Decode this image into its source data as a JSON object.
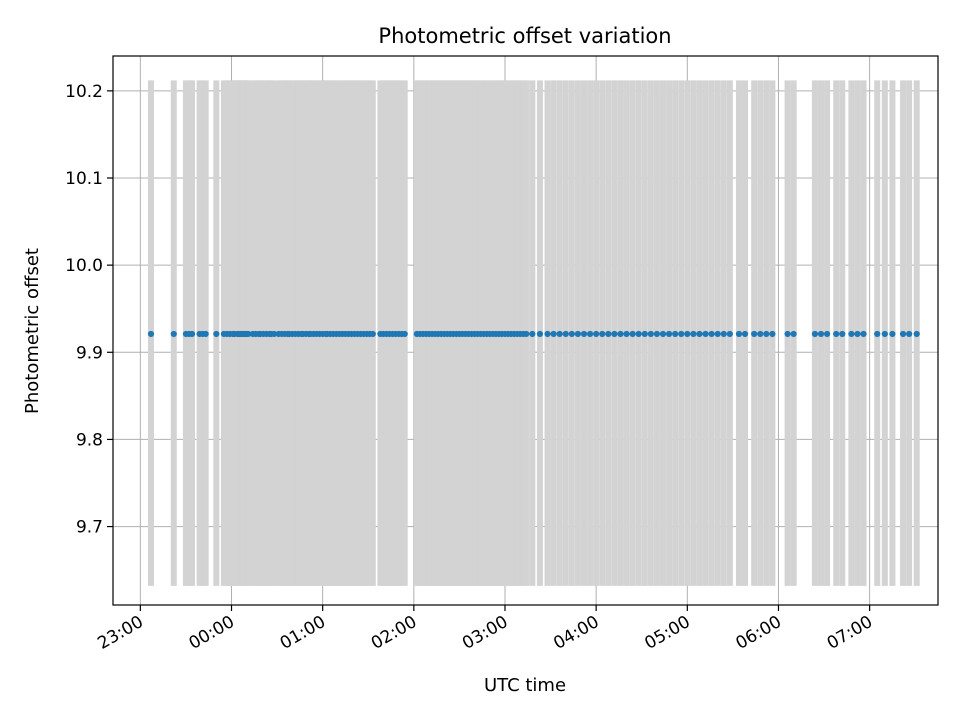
{
  "chart_data": {
    "type": "scatter",
    "title": "Photometric offset variation",
    "xlabel": "UTC time",
    "ylabel": "Photometric offset",
    "x_axis": {
      "kind": "time",
      "min": "22:42",
      "max": "07:45",
      "ticks": [
        "23:00",
        "00:00",
        "01:00",
        "02:00",
        "03:00",
        "04:00",
        "05:00",
        "06:00",
        "07:00"
      ],
      "tick_label_rotation_deg": 30
    },
    "y_axis": {
      "min": 9.61,
      "max": 10.24,
      "ticks": [
        "9.7",
        "9.8",
        "9.9",
        "10.0",
        "10.1",
        "10.2"
      ]
    },
    "grid": true,
    "colors": {
      "points": "#1f77b4",
      "error_bars": "#d3d3d3",
      "grid": "#b0b0b0",
      "axes": "#000000"
    },
    "error_band": {
      "lower": 9.632,
      "upper": 10.212
    },
    "series": [
      {
        "y_value": 9.921,
        "x": [
          "23:07",
          "23:22",
          "23:30",
          "23:32",
          "23:34",
          "23:39",
          "23:41",
          "23:43",
          "23:50",
          "23:55",
          "23:57",
          "23:59",
          "00:01",
          "00:02",
          "00:04",
          "00:05",
          "00:06",
          "00:07",
          "00:08",
          "00:09",
          "00:10",
          "00:11",
          "00:14",
          "00:16",
          "00:18",
          "00:19",
          "00:21",
          "00:23",
          "00:25",
          "00:26",
          "00:28",
          "00:31",
          "00:33",
          "00:35",
          "00:37",
          "00:38",
          "00:40",
          "00:42",
          "00:44",
          "00:46",
          "00:47",
          "00:49",
          "00:51",
          "00:52",
          "00:54",
          "00:56",
          "00:58",
          "01:00",
          "01:02",
          "01:03",
          "01:05",
          "01:07",
          "01:09",
          "01:11",
          "01:13",
          "01:15",
          "01:17",
          "01:19",
          "01:21",
          "01:23",
          "01:25",
          "01:27",
          "01:29",
          "01:31",
          "01:33",
          "01:38",
          "01:40",
          "01:42",
          "01:44",
          "01:46",
          "01:48",
          "01:50",
          "01:52",
          "01:54",
          "02:02",
          "02:04",
          "02:06",
          "02:08",
          "02:10",
          "02:12",
          "02:14",
          "02:16",
          "02:18",
          "02:20",
          "02:22",
          "02:24",
          "02:26",
          "02:28",
          "02:30",
          "02:32",
          "02:34",
          "02:36",
          "02:38",
          "02:40",
          "02:42",
          "02:44",
          "02:46",
          "02:48",
          "02:50",
          "02:52",
          "02:54",
          "02:56",
          "02:58",
          "03:00",
          "03:02",
          "03:04",
          "03:06",
          "03:08",
          "03:10",
          "03:12",
          "03:14",
          "03:18",
          "03:23",
          "03:28",
          "03:32",
          "03:36",
          "03:40",
          "03:44",
          "03:48",
          "03:52",
          "03:56",
          "04:00",
          "04:04",
          "04:08",
          "04:12",
          "04:16",
          "04:20",
          "04:24",
          "04:28",
          "04:32",
          "04:36",
          "04:40",
          "04:44",
          "04:48",
          "04:52",
          "04:56",
          "05:00",
          "05:04",
          "05:08",
          "05:12",
          "05:16",
          "05:20",
          "05:24",
          "05:28",
          "05:34",
          "05:38",
          "05:44",
          "05:48",
          "05:52",
          "05:56",
          "06:06",
          "06:10",
          "06:24",
          "06:28",
          "06:32",
          "06:38",
          "06:42",
          "06:48",
          "06:52",
          "06:56",
          "07:05",
          "07:10",
          "07:15",
          "07:22",
          "07:26",
          "07:31"
        ]
      }
    ]
  }
}
